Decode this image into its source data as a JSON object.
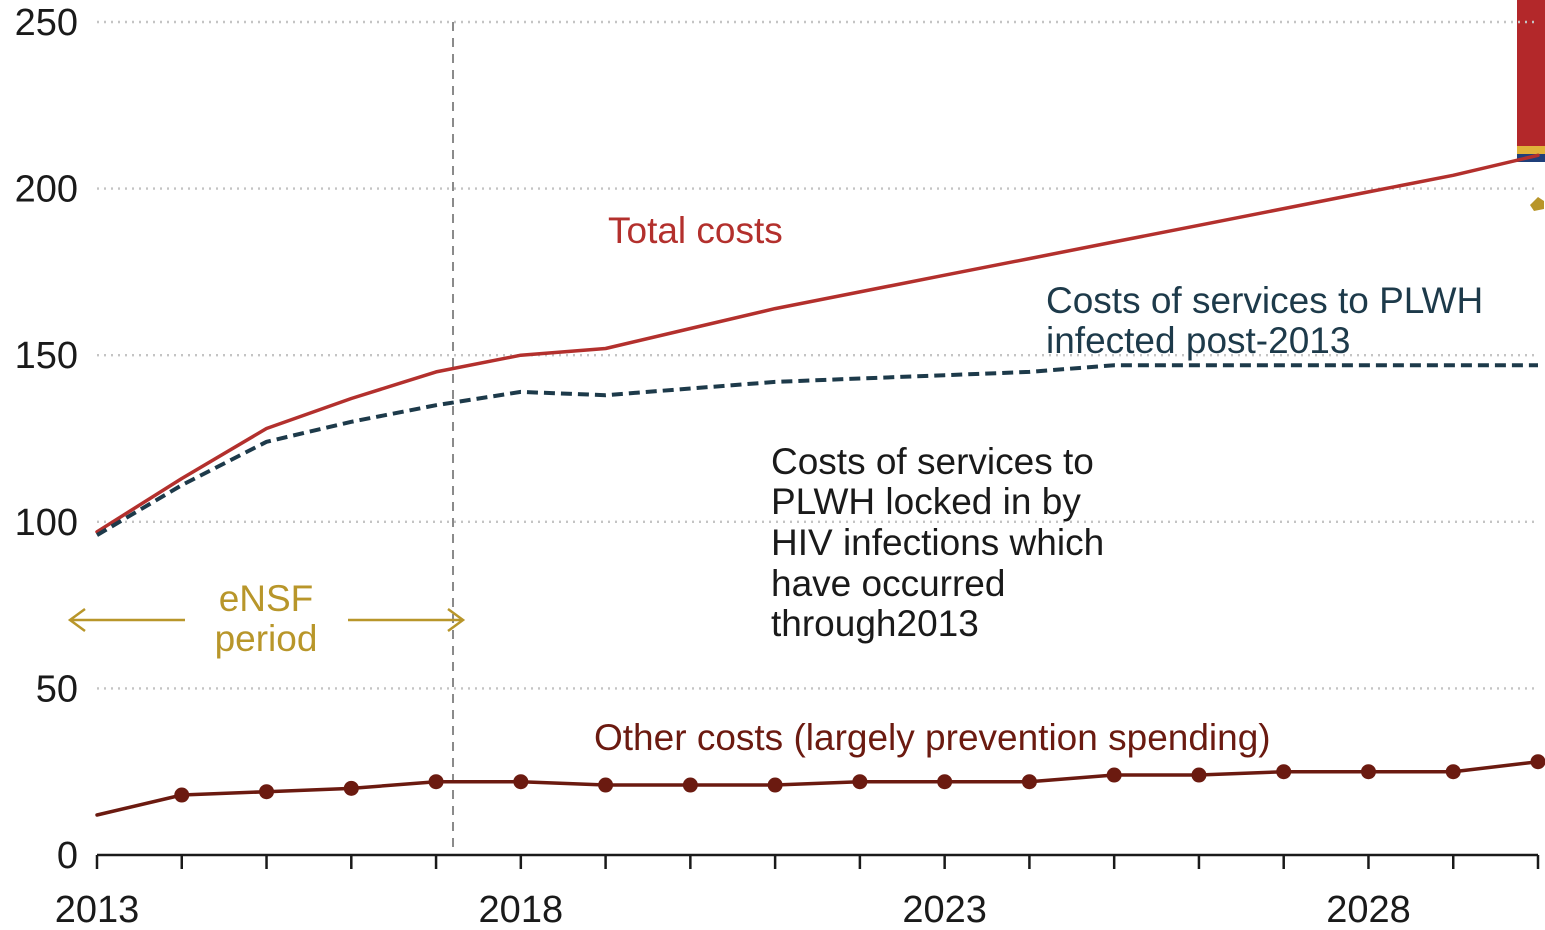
{
  "chart_data": {
    "type": "line",
    "title": "",
    "xlabel": "",
    "ylabel": "",
    "xlim": [
      2013,
      2030
    ],
    "ylim": [
      0,
      250
    ],
    "grid": true,
    "y_ticks": [
      "0",
      "50",
      "100",
      "150",
      "200",
      "250"
    ],
    "x_tick_labels": [
      "2013",
      "2018",
      "2023",
      "2028"
    ],
    "series": [
      {
        "name": "Total costs",
        "style": "solid",
        "color": "#b3302d",
        "x": [
          2013,
          2014,
          2015,
          2016,
          2017,
          2018,
          2019,
          2020,
          2021,
          2022,
          2023,
          2024,
          2025,
          2026,
          2027,
          2028,
          2029,
          2030
        ],
        "values": [
          97,
          113,
          128,
          137,
          145,
          150,
          152,
          158,
          164,
          169,
          174,
          179,
          184,
          189,
          194,
          199,
          204,
          210
        ]
      },
      {
        "name": "Costs of services to PLWH infected post-2013",
        "style": "dashed",
        "color": "#1d3a4a",
        "x": [
          2013,
          2014,
          2015,
          2016,
          2017,
          2018,
          2019,
          2020,
          2021,
          2022,
          2023,
          2024,
          2025,
          2026,
          2027,
          2028,
          2029,
          2030
        ],
        "values": [
          96,
          111,
          124,
          130,
          135,
          139,
          138,
          140,
          142,
          143,
          144,
          145,
          147,
          147,
          147,
          147,
          147,
          147
        ]
      },
      {
        "name": "Other costs (largely prevention spending)",
        "style": "solid-markers",
        "color": "#6b1a10",
        "x": [
          2013,
          2014,
          2015,
          2016,
          2017,
          2018,
          2019,
          2020,
          2021,
          2022,
          2023,
          2024,
          2025,
          2026,
          2027,
          2028,
          2029,
          2030
        ],
        "values": [
          12,
          18,
          19,
          20,
          22,
          22,
          21,
          21,
          21,
          22,
          22,
          22,
          24,
          24,
          25,
          25,
          25,
          28
        ],
        "marker_from_index": 1
      }
    ],
    "vline_x": 2017.2,
    "annotations": {
      "total": "Total costs",
      "post2013_line1": "Costs of services to PLWH",
      "post2013_line2": "infected post-2013",
      "locked_lines": [
        "Costs of services to",
        "PLWH locked in by",
        "HIV infections which",
        "have occurred",
        "through2013"
      ],
      "ensf_line1": "eNSF",
      "ensf_line2": "period",
      "other": "Other costs (largely prevention spending)"
    },
    "colors": {
      "total": "#b3302d",
      "post2013": "#1d3a4a",
      "locked": "#1a1a1a",
      "ensf": "#b8962a",
      "other": "#6b1a10",
      "vline": "#8a8a8a"
    }
  }
}
